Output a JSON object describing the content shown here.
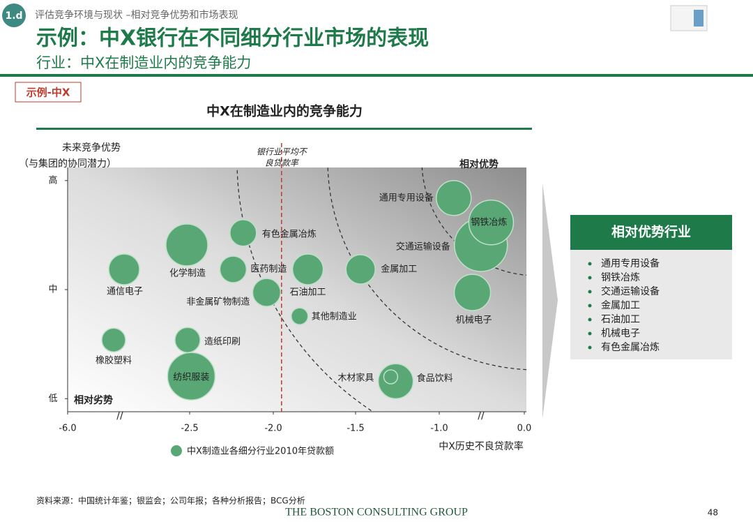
{
  "header": {
    "badge": "1.d",
    "breadcrumb": "评估竞争环境与现状 –相对竞争优势和市场表现",
    "title": "示例：中X银行在不同细分行业市场的表现",
    "subtitle": "行业：中X在制造业内的竞争能力",
    "tag": "示例-中X"
  },
  "chart_data": {
    "type": "scatter",
    "title": "中X在制造业内的竞争能力",
    "x_label": "中X历史不良贷款率",
    "y_label": "未来竞争优势",
    "y_label_note": "（与集团的协同潜力）",
    "reference_line": {
      "value": -1.95,
      "label": [
        "银行业平均不",
        "良贷款率"
      ]
    },
    "corner_labels": {
      "top_right": "相对优势",
      "bottom_left": "相对劣势"
    },
    "xticks": [
      {
        "value": -6,
        "label": "-6.0"
      },
      -2.5,
      {
        "value": -2,
        "label": "-2.0"
      },
      -1.5,
      {
        "value": -1,
        "label": "-1.0"
      },
      {
        "value": 0,
        "label": "0.0"
      }
    ],
    "ylim": [
      -0.6,
      10.6
    ],
    "yticks": [
      {
        "value": 0,
        "label": "低"
      },
      {
        "value": 5,
        "label": "中"
      },
      {
        "value": 10,
        "label": "高"
      }
    ],
    "series": [
      {
        "name": "中X制造业各细分行业2010年贷款额",
        "color": "#5aa776",
        "labels": [
          "通用专用设备",
          "交通运输设备",
          "钢铁冶炼",
          "机械电子",
          "金属加工",
          "石油加工",
          "其他制造业",
          "非金属矿物制造",
          "医药制造",
          "有色金属冶炼",
          "化学制造",
          "通信电子",
          "橡胶塑料",
          "造纸印刷",
          "纺织服装",
          "食品饮料",
          "木材家具"
        ],
        "x": [
          -0.83,
          -0.51,
          -0.39,
          -0.61,
          -1.47,
          -1.79,
          -1.84,
          -2.04,
          -2.24,
          -2.18,
          -2.58,
          -4.38,
          -4.68,
          -2.56,
          -2.49,
          -1.26,
          -1.29
        ],
        "values": [
          9.2,
          7.05,
          8.08,
          4.87,
          5.93,
          5.93,
          3.78,
          4.87,
          5.93,
          7.6,
          7.05,
          5.93,
          2.69,
          2.69,
          1.03,
          0.8,
          1.0
        ],
        "sizes": [
          625,
          1444,
          1024,
          676,
          441,
          484,
          144,
          400,
          361,
          361,
          900,
          484,
          289,
          324,
          1156,
          625,
          100
        ]
      }
    ]
  },
  "sidebar": {
    "title": "相对优势行业",
    "items": [
      "通用专用设备",
      "钢铁冶炼",
      "交通运输设备",
      "金属加工",
      "石油加工",
      "机械电子",
      "有色金属冶炼"
    ]
  },
  "footer": {
    "source": "资料来源：中国统计年鉴；银监会；公司年报；各种分析报告；BCG分析",
    "company": "THE BOSTON CONSULTING GROUP",
    "page": "48"
  }
}
